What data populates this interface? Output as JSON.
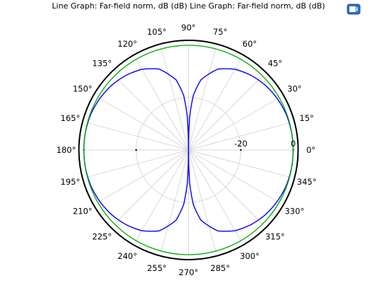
{
  "title": "Line Graph: Far-field norm, dB (dB)  Line Graph: Far-field norm, dB (dB)",
  "export_icon": "export-image-icon",
  "chart_data": {
    "type": "polar-line",
    "title": "Line Graph: Far-field norm, dB (dB)  Line Graph: Far-field norm, dB (dB)",
    "angle_unit": "degrees",
    "angle_ticks": [
      0,
      15,
      30,
      45,
      60,
      75,
      90,
      105,
      120,
      135,
      150,
      165,
      180,
      195,
      210,
      225,
      240,
      255,
      270,
      285,
      300,
      315,
      330,
      345
    ],
    "angle_tick_labels": [
      "0°",
      "15°",
      "30°",
      "45°",
      "60°",
      "75°",
      "90°",
      "105°",
      "120°",
      "135°",
      "150°",
      "165°",
      "180°",
      "195°",
      "210°",
      "225°",
      "240°",
      "255°",
      "270°",
      "285°",
      "300°",
      "315°",
      "330°",
      "345°"
    ],
    "radial_range_db": [
      -40,
      0
    ],
    "radial_ticks": [
      -20,
      0
    ],
    "radial_tick_labels": [
      "-20",
      "0"
    ],
    "grid": true,
    "series": [
      {
        "color": "#0000ff",
        "style": "donut pattern, nulls at 90° and 270°, 0 dB max at 0° and 180°",
        "angle_deg": [
          0,
          10,
          20,
          30,
          40,
          50,
          60,
          70,
          80,
          85,
          88,
          90
        ],
        "value_db": [
          0,
          -0.05,
          -0.25,
          -0.8,
          -1.6,
          -2.8,
          -4.4,
          -7.1,
          -12.8,
          -19.2,
          -27.4,
          -40
        ]
      },
      {
        "color": "#00aa00",
        "style": "isotropic reference, constant",
        "angle_deg": [
          0,
          90,
          180,
          270
        ],
        "value_db": [
          0,
          0,
          0,
          0
        ]
      }
    ]
  }
}
